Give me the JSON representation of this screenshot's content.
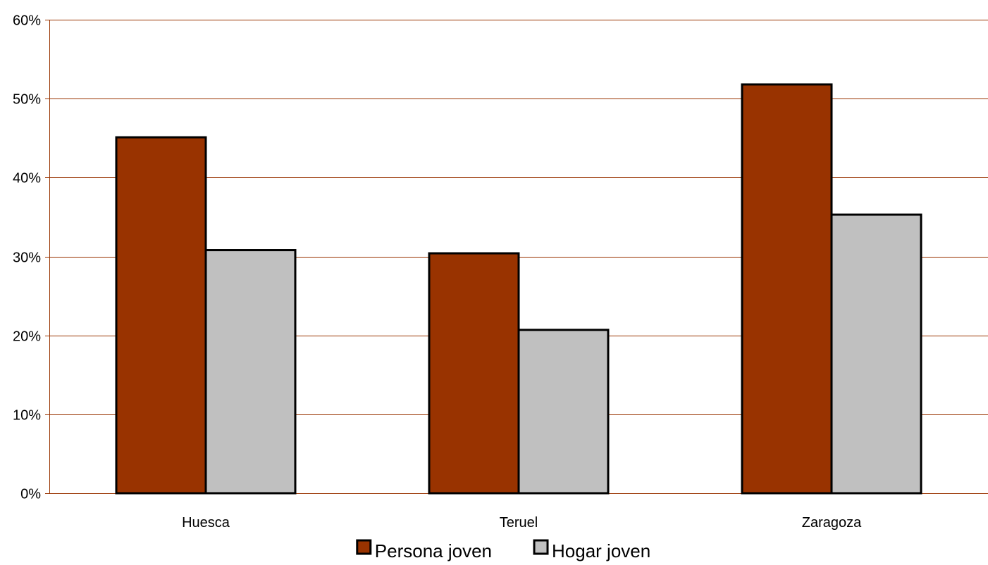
{
  "chart_data": {
    "type": "bar",
    "categories": [
      "Huesca",
      "Teruel",
      "Zaragoza"
    ],
    "series": [
      {
        "name": "Persona joven",
        "values": [
          45.1,
          30.4,
          51.8
        ],
        "color": "#993300"
      },
      {
        "name": "Hogar joven",
        "values": [
          30.8,
          20.7,
          35.3
        ],
        "color": "#C0C0C0"
      }
    ],
    "ylim": [
      0,
      60
    ],
    "yticks": [
      0,
      10,
      20,
      30,
      40,
      50,
      60
    ],
    "ytick_labels": [
      "0%",
      "10%",
      "20%",
      "30%",
      "40%",
      "50%",
      "60%"
    ],
    "grid": true,
    "grid_color": "#993300",
    "legend_position": "bottom",
    "title": "",
    "xlabel": "",
    "ylabel": ""
  }
}
